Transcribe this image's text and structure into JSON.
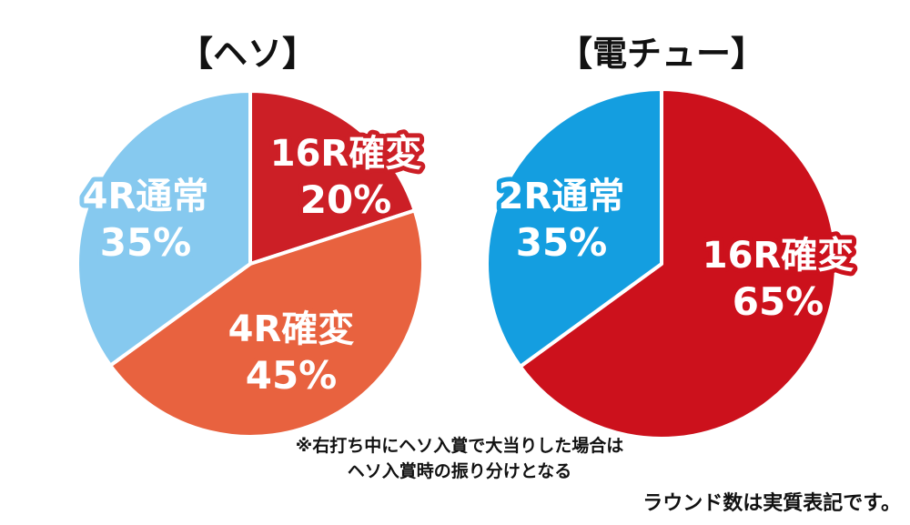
{
  "chart_data": [
    {
      "type": "pie",
      "title": "【ヘソ】",
      "categories": [
        "16R確変",
        "4R確変",
        "4R通常"
      ],
      "values": [
        20,
        45,
        35
      ],
      "value_labels": [
        "20%",
        "45%",
        "35%"
      ],
      "colors": [
        "#cc1f26",
        "#e8623f",
        "#86c9ef"
      ],
      "label_outline_colors": [
        "#cc1f26",
        "#e8623f",
        "#86c9ef"
      ]
    },
    {
      "type": "pie",
      "title": "【電チュー】",
      "categories": [
        "16R確変",
        "2R通常"
      ],
      "values": [
        65,
        35
      ],
      "value_labels": [
        "65%",
        "35%"
      ],
      "colors": [
        "#cc111c",
        "#149ee0"
      ],
      "label_outline_colors": [
        "#cc111c",
        "#149ee0"
      ]
    }
  ],
  "notes": {
    "line1": "※右打ち中にヘソ入賞で大当りした場合は",
    "line2": "ヘソ入賞時の振り分けとなる",
    "line3": "ラウンド数は実質表記です。"
  },
  "colors": {
    "pie_border": "#ffffff",
    "title_text": "#111111"
  }
}
